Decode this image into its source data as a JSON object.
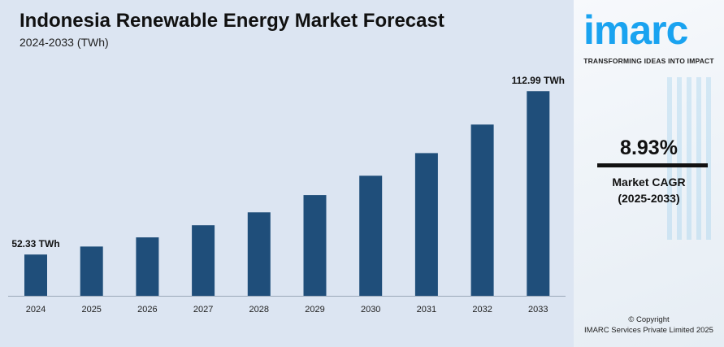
{
  "chart_data": {
    "type": "bar",
    "title": "Indonesia Renewable Energy Market Forecast",
    "subtitle": "2024-2033 (TWh)",
    "categories": [
      "2024",
      "2025",
      "2026",
      "2027",
      "2028",
      "2029",
      "2030",
      "2031",
      "2032",
      "2033"
    ],
    "values": [
      52.33,
      55.3,
      58.7,
      63.2,
      68.0,
      74.4,
      81.6,
      90.0,
      100.6,
      112.99
    ],
    "data_labels": {
      "0": "52.33 TWh",
      "9": "112.99 TWh"
    },
    "ylim": [
      37,
      120
    ],
    "grid": false,
    "bar_color": "#1f4e7a"
  },
  "side": {
    "logo": "imarc",
    "tagline": "TRANSFORMING IDEAS INTO IMPACT",
    "cagr_value": "8.93%",
    "cagr_label": "Market CAGR",
    "cagr_period": "(2025-2033)",
    "copyright": "© Copyright",
    "company": "IMARC Services Private Limited 2025",
    "brand_color": "#1aa3f0"
  }
}
